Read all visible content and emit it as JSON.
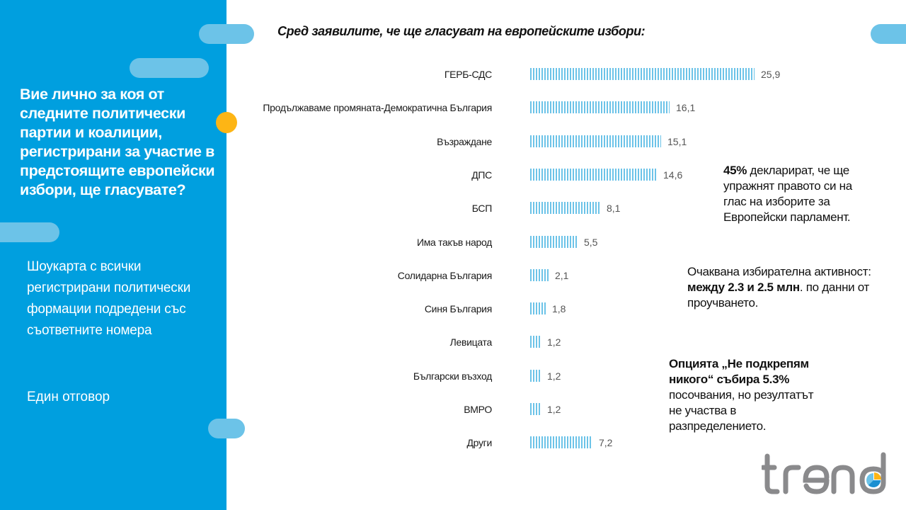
{
  "sidebar": {
    "question": "Вие лично за коя от следните политически партии и коалиции, регистрирани за участие в предстоящите европейски избори, ще гласувате?",
    "subtitle": "Шоукарта с всички регистрирани политически формации подредени със съответните номера",
    "answer_type": "Един отговор"
  },
  "chart_data": {
    "type": "bar",
    "orientation": "horizontal",
    "title": "Сред заявилите,  че ще гласуват на европейските  избори:",
    "categories": [
      "ГЕРБ-СДС",
      "Продължаваме промяната-Демократична България",
      "Възраждане",
      "ДПС",
      "БСП",
      "Има такъв народ",
      "Солидарна България",
      "Синя България",
      "Левицата",
      "Български възход",
      "ВМРО",
      "Други"
    ],
    "values": [
      25.9,
      16.1,
      15.1,
      14.6,
      8.1,
      5.5,
      2.1,
      1.8,
      1.2,
      1.2,
      1.2,
      7.2
    ],
    "value_labels": [
      "25,9",
      "16,1",
      "15,1",
      "14,6",
      "8,1",
      "5,5",
      "2,1",
      "1,8",
      "1,2",
      "1,2",
      "1,2",
      "7,2"
    ],
    "xlabel": "",
    "ylabel": "",
    "grid": false,
    "bar_color": "#6cc3e8"
  },
  "notes": {
    "turnout_declared": {
      "bold": "45%",
      "text": " декларират, че ще упражнят правото си на глас на изборите за Европейски парламент."
    },
    "expected_activity": {
      "text_before": "Очаквана избирателна активност: ",
      "bold": "между 2.3 и 2.5 млн",
      "text_after": ". по данни от проучването."
    },
    "no_support": {
      "bold": "Опцията „Не подкрепям никого“ събира 5.3%",
      "text": " посочвания, но резултатът не участва в разпределението."
    }
  },
  "logo": {
    "text": "trend"
  },
  "colors": {
    "panel": "#009fdf",
    "pill": "#6cc3e8",
    "accent_dot": "#fdb515",
    "logo_gray": "#8a8a8c"
  }
}
